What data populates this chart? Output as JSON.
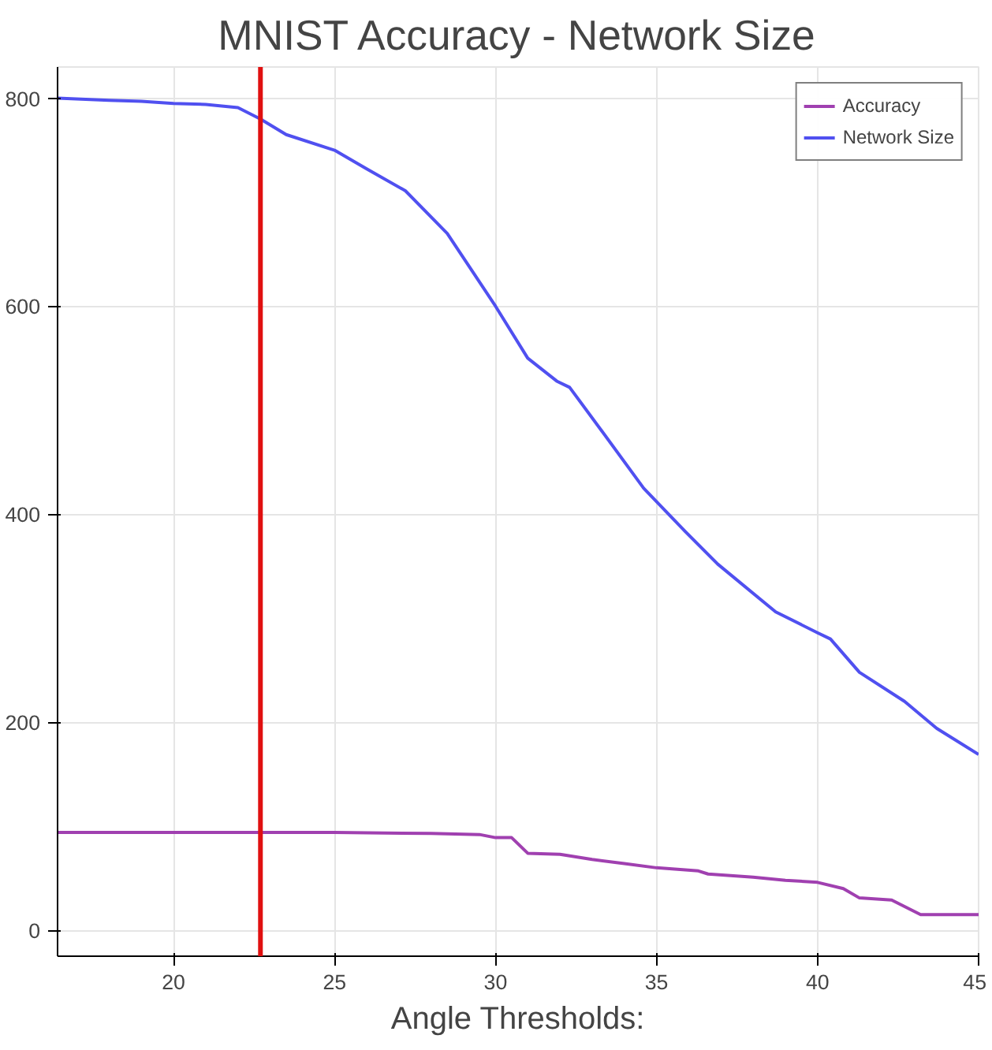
{
  "chart_data": {
    "type": "line",
    "title": "MNIST Accuracy - Network Size",
    "xlabel": "Angle Thresholds:",
    "xlim": [
      16.4,
      45
    ],
    "xticks": [
      20,
      25,
      30,
      35,
      40,
      45
    ],
    "ylim": [
      -25,
      830
    ],
    "yticks": [
      0,
      200,
      400,
      600,
      800
    ],
    "grid": true,
    "legend": "top right",
    "series": [
      {
        "name": "Accuracy",
        "color": "#a040b0",
        "x": [
          16.4,
          20,
          25,
          28,
          29.5,
          30,
          30.5,
          31,
          32,
          33,
          34,
          35,
          36.3,
          36.6,
          38,
          39,
          40,
          40.8,
          41.3,
          42.3,
          43.2,
          45
        ],
        "values": [
          94,
          94,
          94,
          93,
          92,
          89,
          89,
          74,
          73,
          68,
          64,
          60,
          57,
          54,
          51,
          48,
          46,
          40,
          31,
          29,
          15,
          15
        ]
      },
      {
        "name": "Network Size",
        "color": "#5050f0",
        "x": [
          16.4,
          18,
          19,
          20,
          21,
          22,
          22.7,
          23.5,
          25,
          26,
          27.2,
          28.5,
          30,
          31,
          31.9,
          32.3,
          33.3,
          34.6,
          35.9,
          36.9,
          38.7,
          40,
          40.4,
          41.3,
          42.7,
          43.7,
          45
        ],
        "values": [
          800,
          798,
          797,
          795,
          794,
          791,
          780,
          765,
          750,
          732,
          711,
          670,
          600,
          550,
          528,
          522,
          480,
          425,
          383,
          352,
          306,
          286,
          280,
          248,
          220,
          194,
          169
        ]
      }
    ],
    "ref_lines": [
      {
        "axis": "x",
        "value": 22.7,
        "color": "#e01010"
      }
    ]
  }
}
